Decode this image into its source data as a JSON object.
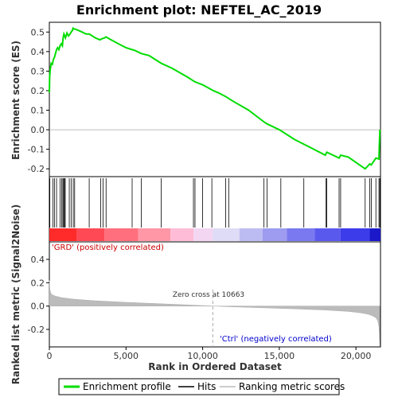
{
  "chart_data": {
    "type": "line",
    "title": "Enrichment plot: NEFTEL_AC_2019",
    "top_panel": {
      "ylabel": "Enrichment score (ES)",
      "ylim": [
        -0.24,
        0.55
      ],
      "yticks": [
        -0.2,
        -0.1,
        0.0,
        0.1,
        0.2,
        0.3,
        0.4,
        0.5
      ],
      "ytick_labels": [
        "-0.2",
        "-0.1",
        "0.0",
        "0.1",
        "0.2",
        "0.3",
        "0.4",
        "0.5"
      ],
      "series": [
        {
          "name": "Enrichment profile",
          "color": "#00dd00",
          "x": [
            0,
            20,
            60,
            120,
            200,
            260,
            330,
            400,
            470,
            540,
            620,
            700,
            780,
            850,
            900,
            950,
            1000,
            1050,
            1150,
            1250,
            1350,
            1420,
            1480,
            1550,
            1620,
            1700,
            2000,
            2400,
            2600,
            2700,
            3000,
            3300,
            3400,
            3600,
            3700,
            3800,
            4500,
            5000,
            5400,
            5600,
            6000,
            6500,
            7000,
            7300,
            8000,
            9000,
            9400,
            9500,
            10000,
            10700,
            11000,
            11500,
            12000,
            13000,
            14000,
            14200,
            15000,
            16000,
            16500,
            17000,
            18000,
            18100,
            18500,
            18900,
            19000,
            19500,
            20600,
            20900,
            21000,
            21300,
            21500,
            21520,
            21540,
            21560
          ],
          "y": [
            0.19,
            0.27,
            0.31,
            0.34,
            0.335,
            0.36,
            0.37,
            0.39,
            0.41,
            0.42,
            0.41,
            0.43,
            0.44,
            0.43,
            0.47,
            0.49,
            0.48,
            0.47,
            0.495,
            0.48,
            0.49,
            0.5,
            0.505,
            0.52,
            0.515,
            0.515,
            0.505,
            0.49,
            0.49,
            0.485,
            0.47,
            0.46,
            0.465,
            0.47,
            0.475,
            0.47,
            0.44,
            0.42,
            0.41,
            0.405,
            0.39,
            0.38,
            0.355,
            0.34,
            0.315,
            0.27,
            0.25,
            0.245,
            0.23,
            0.2,
            0.19,
            0.17,
            0.145,
            0.1,
            0.04,
            0.03,
            0.0,
            -0.05,
            -0.07,
            -0.09,
            -0.13,
            -0.115,
            -0.13,
            -0.145,
            -0.13,
            -0.14,
            -0.2,
            -0.175,
            -0.18,
            -0.145,
            -0.15,
            -0.09,
            -0.05,
            0.0
          ]
        }
      ],
      "hits": [
        30,
        240,
        330,
        470,
        700,
        800,
        880,
        940,
        980,
        1040,
        1300,
        1420,
        1560,
        1650,
        2600,
        3350,
        3500,
        3700,
        5400,
        6000,
        7300,
        9400,
        9500,
        10000,
        10600,
        11500,
        11700,
        14000,
        14200,
        15100,
        16600,
        18050,
        18100,
        18900,
        19000,
        20600,
        20900,
        21000,
        21300,
        21500,
        21560
      ]
    },
    "bar_panel": {
      "segments": [
        {
          "start": 0,
          "end": 1800,
          "color": "#ff2a2a"
        },
        {
          "start": 1800,
          "end": 3600,
          "color": "#ff4a55"
        },
        {
          "start": 3600,
          "end": 5800,
          "color": "#ff6f7d"
        },
        {
          "start": 5800,
          "end": 7900,
          "color": "#ff97a6"
        },
        {
          "start": 7900,
          "end": 9400,
          "color": "#ffbcd6"
        },
        {
          "start": 9400,
          "end": 10663,
          "color": "#f3d6f2"
        },
        {
          "start": 10663,
          "end": 12400,
          "color": "#dedcf6"
        },
        {
          "start": 12400,
          "end": 13900,
          "color": "#bdbcf2"
        },
        {
          "start": 13900,
          "end": 15500,
          "color": "#9d9cf0"
        },
        {
          "start": 15500,
          "end": 17300,
          "color": "#7a79ef"
        },
        {
          "start": 17300,
          "end": 19000,
          "color": "#5a59ee"
        },
        {
          "start": 19000,
          "end": 20900,
          "color": "#3d3cea"
        },
        {
          "start": 20900,
          "end": 21600,
          "color": "#1a18c8"
        }
      ]
    },
    "bottom_panel": {
      "ylabel": "Ranked list metric (Signal2Noise)",
      "xlabel": "Rank in Ordered Dataset",
      "ylim": [
        -0.35,
        0.55
      ],
      "yticks": [
        -0.2,
        0.0,
        0.2,
        0.4
      ],
      "ytick_labels": [
        "-0.2",
        "0.0",
        "0.2",
        "0.4"
      ],
      "metric_x": [
        0,
        20,
        50,
        100,
        200,
        400,
        800,
        1500,
        3000,
        5000,
        7000,
        9000,
        10663,
        12000,
        14000,
        16000,
        18000,
        19500,
        20300,
        20800,
        21100,
        21300,
        21400,
        21450,
        21500,
        21530,
        21560
      ],
      "metric_y": [
        0.22,
        0.16,
        0.13,
        0.11,
        0.095,
        0.085,
        0.072,
        0.06,
        0.045,
        0.032,
        0.021,
        0.01,
        0.0,
        -0.007,
        -0.015,
        -0.024,
        -0.034,
        -0.046,
        -0.058,
        -0.07,
        -0.085,
        -0.1,
        -0.12,
        -0.14,
        -0.18,
        -0.25,
        -0.34
      ],
      "annotation_pos": "'GRD' (positively correlated)",
      "annotation_neg": "'Ctrl' (negatively correlated)",
      "zero_cross_label": "Zero cross at 10663",
      "zero_cross": 10663
    },
    "xlim": [
      0,
      21600
    ],
    "xticks": [
      0,
      5000,
      10000,
      15000,
      20000
    ],
    "xtick_labels": [
      "0",
      "5,000",
      "10,000",
      "15,000",
      "20,000"
    ],
    "legend": [
      {
        "label": "Enrichment profile",
        "color": "#00dd00"
      },
      {
        "label": "Hits",
        "color": "#000000"
      },
      {
        "label": "Ranking metric scores",
        "color": "#bbbbbb"
      }
    ]
  }
}
